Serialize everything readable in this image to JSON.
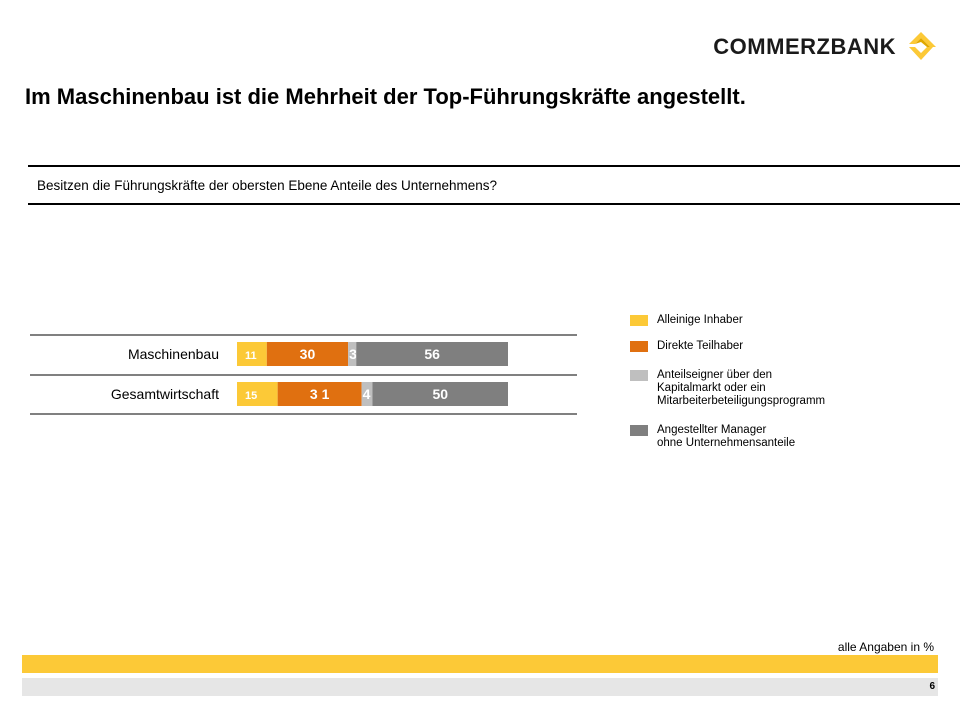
{
  "header": {
    "brand": "COMMERZBANK",
    "title": "Im Maschinenbau ist die Mehrheit der Top-Führungskräfte angestellt.",
    "question": "Besitzen die Führungskräfte der obersten Ebene Anteile des Unternehmens?"
  },
  "colors": {
    "alleinige": "#fcc937",
    "direkte": "#e07010",
    "anteilseigner": "#bfbfbf",
    "angestellter": "#7f7f7f",
    "brand_yellow": "#fcc937"
  },
  "chart_data": {
    "type": "bar",
    "orientation": "horizontal",
    "stacked": true,
    "categories": [
      "Maschinenbau",
      "Gesamtwirtschaft"
    ],
    "series": [
      {
        "name": "Alleinige Inhaber",
        "values": [
          11,
          15
        ],
        "labels": [
          "11",
          "15"
        ]
      },
      {
        "name": "Direkte Teilhaber",
        "values": [
          30,
          31
        ],
        "labels": [
          "30",
          "3 1"
        ]
      },
      {
        "name": "Anteilseigner über den Kapitalmarkt oder ein Mitarbeiterbeteiligungsprogramm",
        "values": [
          3,
          4
        ],
        "labels": [
          "3",
          "4"
        ]
      },
      {
        "name": "Angestellter Manager ohne Unternehmensanteile",
        "values": [
          56,
          50
        ],
        "labels": [
          "56",
          "50"
        ]
      }
    ],
    "xlim": [
      0,
      100
    ],
    "unit": "%",
    "legend_position": "right"
  },
  "legend": [
    "Alleinige Inhaber",
    "Direkte Teilhaber",
    "Anteilseigner über den\nKapitalmarkt oder ein\nMitarbeiterbeteiligungsprogramm",
    "Angestellter Manager\nohne Unternehmensanteile"
  ],
  "footer": {
    "note": "alle Angaben in %",
    "page": "6"
  }
}
